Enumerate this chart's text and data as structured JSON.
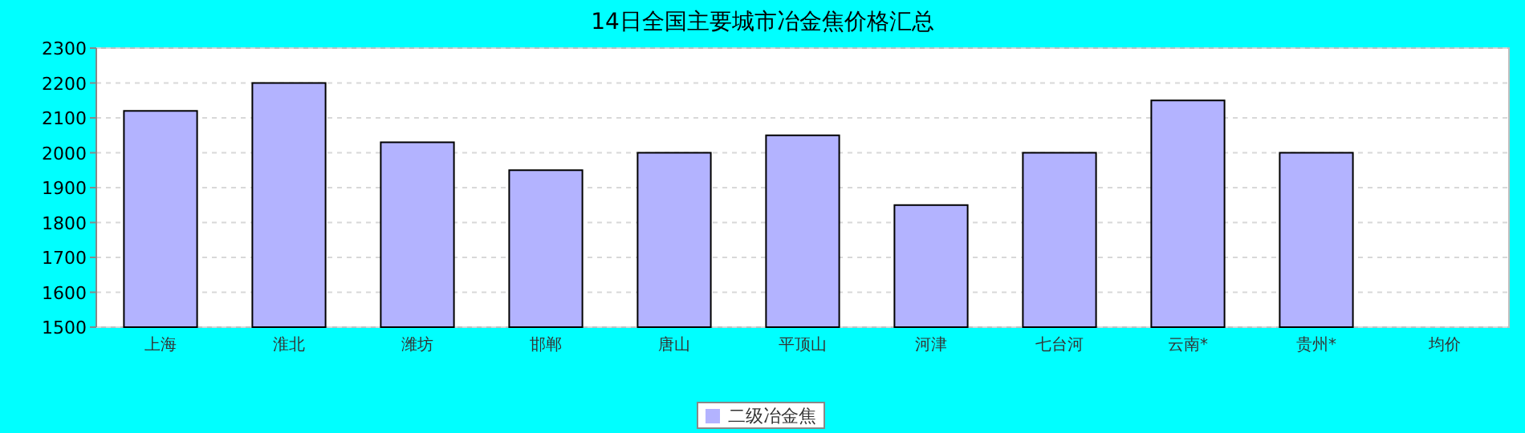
{
  "chart_data": {
    "type": "bar",
    "title": "14日全国主要城市冶金焦价格汇总",
    "categories": [
      "上海",
      "淮北",
      "潍坊",
      "邯郸",
      "唐山",
      "平顶山",
      "河津",
      "七台河",
      "云南*",
      "贵州*",
      "均价"
    ],
    "series": [
      {
        "name": "二级冶金焦",
        "color": "#b3b3ff",
        "values": [
          2120,
          2200,
          2030,
          1950,
          2000,
          2050,
          1850,
          2000,
          2150,
          2000,
          null
        ]
      }
    ],
    "ylim": [
      1500,
      2300
    ],
    "yticks": [
      1500,
      1600,
      1700,
      1800,
      1900,
      2000,
      2100,
      2200,
      2300
    ],
    "grid": "y",
    "legend": "bottom"
  }
}
